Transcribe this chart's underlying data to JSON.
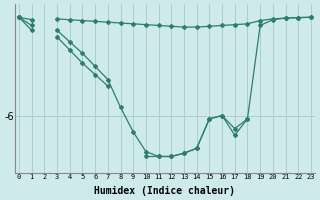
{
  "xlabel": "Humidex (Indice chaleur)",
  "background_color": "#ceeaea",
  "line_color": "#2e7d72",
  "grid_color": "#aacece",
  "x_ticks": [
    0,
    1,
    2,
    3,
    4,
    5,
    6,
    7,
    8,
    9,
    10,
    11,
    12,
    13,
    14,
    15,
    16,
    17,
    18,
    19,
    20,
    21,
    22,
    23
  ],
  "y_ticks": [
    -6
  ],
  "ylim": [
    -9.5,
    0.8
  ],
  "xlim": [
    -0.3,
    23.3
  ],
  "figsize": [
    3.2,
    2.0
  ],
  "dpi": 100,
  "line1_y": [
    0.0,
    -0.15,
    null,
    -0.1,
    -0.15,
    -0.2,
    -0.25,
    -0.3,
    -0.35,
    -0.4,
    -0.45,
    -0.5,
    -0.55,
    -0.6,
    -0.6,
    -0.55,
    -0.5,
    -0.45,
    -0.4,
    -0.2,
    -0.1,
    -0.05,
    -0.02,
    0.0
  ],
  "line2_y": [
    0.0,
    -0.5,
    null,
    -0.8,
    -1.5,
    -2.2,
    -3.0,
    -3.8,
    -5.5,
    -7.0,
    -8.2,
    -8.5,
    -8.5,
    -8.3,
    -8.0,
    -6.2,
    -6.0,
    -6.8,
    -6.2,
    -0.5,
    -0.15,
    -0.05,
    -0.02,
    0.0
  ],
  "line3_y": [
    0.0,
    -0.8,
    null,
    -1.2,
    -2.0,
    -2.8,
    -3.5,
    -4.2,
    null,
    null,
    -8.5,
    -8.5,
    -8.5,
    -8.3,
    -8.0,
    -6.2,
    -6.0,
    -7.2,
    -6.2,
    null,
    null,
    null,
    null,
    null
  ],
  "xlabel_fontsize": 7,
  "ytick_fontsize": 7,
  "xtick_fontsize": 5.0
}
